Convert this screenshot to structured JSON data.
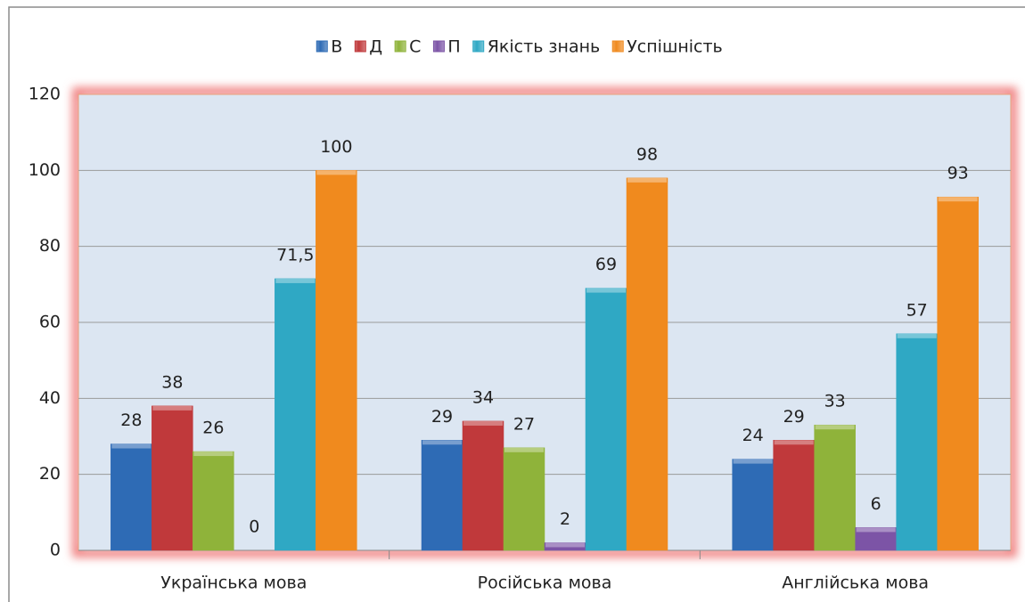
{
  "chart_data": {
    "type": "bar",
    "categories": [
      "Українська мова",
      "Російська мова",
      "Англійська мова"
    ],
    "series": [
      {
        "name": "В",
        "color": "#2e6bb5",
        "values": [
          28,
          29,
          24
        ]
      },
      {
        "name": "Д",
        "color": "#c0393b",
        "values": [
          38,
          34,
          29
        ]
      },
      {
        "name": "С",
        "color": "#8fb33a",
        "values": [
          26,
          27,
          33
        ]
      },
      {
        "name": "П",
        "color": "#7c54a6",
        "values": [
          0,
          2,
          6
        ]
      },
      {
        "name": "Якість знань",
        "color": "#2fa8c4",
        "values": [
          71.5,
          69,
          57
        ],
        "value_labels": [
          "71,5",
          "69",
          "57"
        ]
      },
      {
        "name": "Успішність",
        "color": "#f08a1e",
        "values": [
          100,
          98,
          93
        ]
      }
    ],
    "ylim": [
      0,
      120
    ],
    "yticks": [
      0,
      20,
      40,
      60,
      80,
      100,
      120
    ],
    "grid": true,
    "legend": "top"
  }
}
